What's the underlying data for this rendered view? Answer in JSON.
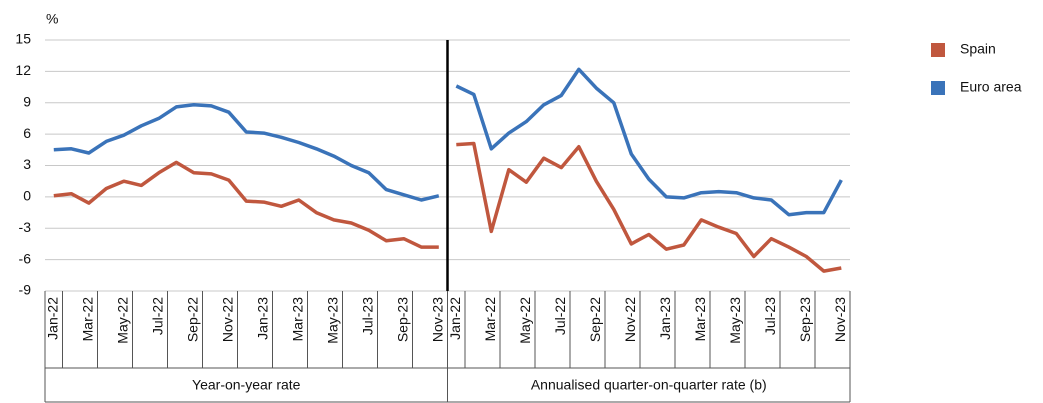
{
  "chart_data": [
    {
      "type": "line",
      "title": "Year-on-year rate",
      "y_label": "%",
      "categories": [
        "Jan-22",
        null,
        "Mar-22",
        null,
        "May-22",
        null,
        "Jul-22",
        null,
        "Sep-22",
        null,
        "Nov-22",
        null,
        "Jan-23",
        null,
        "Mar-23",
        null,
        "May-23",
        null,
        "Jul-23",
        null,
        "Sep-23",
        null,
        "Nov-23"
      ],
      "ylim": [
        -9,
        15
      ],
      "yticks": [
        -9,
        -6,
        -3,
        0,
        3,
        6,
        9,
        12,
        15
      ],
      "grid": true,
      "series": [
        {
          "name": "Spain",
          "color": "#c0573e",
          "values": [
            0.1,
            0.3,
            -0.6,
            0.8,
            1.5,
            1.1,
            2.3,
            3.3,
            2.3,
            2.2,
            1.6,
            -0.4,
            -0.5,
            -0.9,
            -0.3,
            -1.5,
            -2.2,
            -2.5,
            -3.2,
            -4.2,
            -4.0,
            -4.8,
            -4.8
          ]
        },
        {
          "name": "Euro area",
          "color": "#3a73b9",
          "values": [
            4.5,
            4.6,
            4.2,
            5.3,
            5.9,
            6.8,
            7.5,
            8.6,
            8.8,
            8.7,
            8.1,
            6.2,
            6.1,
            5.7,
            5.2,
            4.6,
            3.9,
            3.0,
            2.3,
            0.7,
            0.2,
            -0.3,
            0.1
          ]
        }
      ]
    },
    {
      "type": "line",
      "title": "Annualised quarter-on-quarter rate (b)",
      "categories": [
        "Jan-22",
        null,
        "Mar-22",
        null,
        "May-22",
        null,
        "Jul-22",
        null,
        "Sep-22",
        null,
        "Nov-22",
        null,
        "Jan-23",
        null,
        "Mar-23",
        null,
        "May-23",
        null,
        "Jul-23",
        null,
        "Sep-23",
        null,
        "Nov-23"
      ],
      "ylim": [
        -9,
        15
      ],
      "yticks": [
        -9,
        -6,
        -3,
        0,
        3,
        6,
        9,
        12,
        15
      ],
      "grid": true,
      "series": [
        {
          "name": "Spain",
          "color": "#c0573e",
          "values": [
            5.0,
            5.1,
            -3.3,
            2.6,
            1.4,
            3.7,
            2.8,
            4.8,
            1.5,
            -1.2,
            -4.5,
            -3.6,
            -5.0,
            -4.6,
            -2.2,
            -2.9,
            -3.5,
            -5.7,
            -4.0,
            -4.8,
            -5.7,
            -7.1,
            -6.8
          ]
        },
        {
          "name": "Euro area",
          "color": "#3a73b9",
          "values": [
            10.6,
            9.8,
            4.6,
            6.1,
            7.2,
            8.8,
            9.7,
            12.2,
            10.4,
            9.0,
            4.1,
            1.7,
            0.0,
            -0.1,
            0.4,
            0.5,
            0.4,
            -0.1,
            -0.3,
            -1.7,
            -1.5,
            -1.5,
            1.6
          ]
        }
      ]
    }
  ]
}
